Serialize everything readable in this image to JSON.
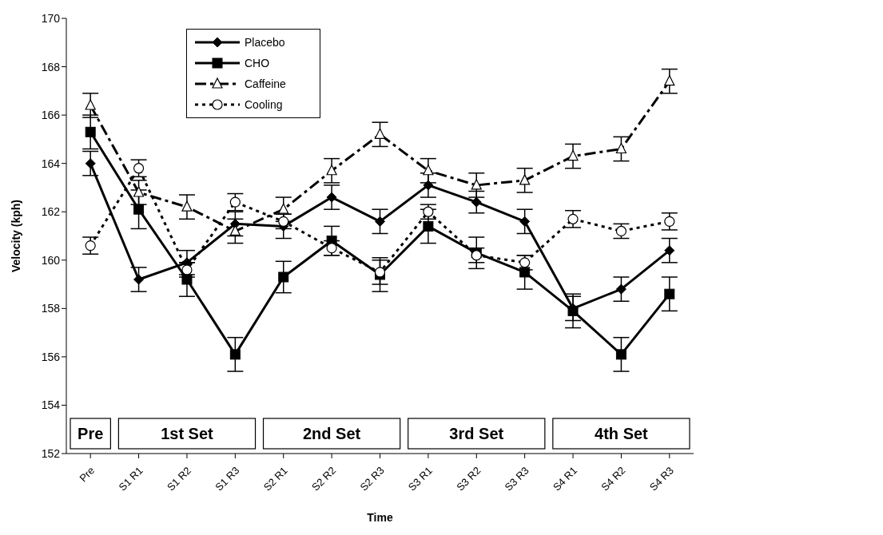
{
  "chart_data": {
    "type": "line",
    "xlabel": "Time",
    "ylabel": "Velocity (kph)",
    "categories": [
      "Pre",
      "S1 R1",
      "S1 R2",
      "S1 R3",
      "S2 R1",
      "S2 R2",
      "S2 R3",
      "S3 R1",
      "S3 R2",
      "S3 R3",
      "S4 R1",
      "S4 R2",
      "S4 R3"
    ],
    "series": [
      {
        "name": "Placebo",
        "color": "#000000",
        "marker": "diamond",
        "line_style": "solid",
        "values": [
          164.0,
          159.2,
          159.9,
          161.5,
          161.4,
          162.6,
          161.6,
          163.1,
          162.4,
          161.6,
          158.0,
          158.8,
          160.4
        ],
        "errors": [
          0.5,
          0.5,
          0.5,
          0.5,
          0.5,
          0.5,
          0.5,
          0.5,
          0.45,
          0.5,
          0.5,
          0.5,
          0.5
        ]
      },
      {
        "name": "CHO",
        "color": "#000000",
        "marker": "square",
        "line_style": "solid",
        "values": [
          165.3,
          162.1,
          159.2,
          156.1,
          159.3,
          160.8,
          159.4,
          161.4,
          160.3,
          159.5,
          157.9,
          156.1,
          158.6
        ],
        "errors": [
          0.7,
          0.8,
          0.7,
          0.7,
          0.65,
          0.6,
          0.7,
          0.7,
          0.65,
          0.7,
          0.7,
          0.7,
          0.7
        ]
      },
      {
        "name": "Caffeine",
        "color": "#000000",
        "marker": "triangle",
        "line_style": "dashed",
        "values": [
          166.4,
          162.8,
          162.2,
          161.2,
          162.1,
          163.7,
          165.2,
          163.7,
          163.1,
          163.3,
          164.3,
          164.6,
          167.4
        ],
        "errors": [
          0.5,
          0.5,
          0.5,
          0.5,
          0.5,
          0.5,
          0.5,
          0.5,
          0.5,
          0.5,
          0.5,
          0.5,
          0.5
        ]
      },
      {
        "name": "Cooling",
        "color": "#000000",
        "marker": "circle",
        "line_style": "dotted",
        "values": [
          160.6,
          163.8,
          159.6,
          162.4,
          161.6,
          160.5,
          159.5,
          162.0,
          160.2,
          159.9,
          161.7,
          161.2,
          161.6
        ],
        "errors": [
          0.35,
          0.35,
          0.3,
          0.35,
          0.3,
          0.3,
          0.5,
          0.3,
          0.3,
          0.3,
          0.35,
          0.3,
          0.35
        ]
      }
    ],
    "bands": [
      {
        "axis": "x",
        "from": "Pre",
        "to": "Pre",
        "label": "Pre"
      },
      {
        "axis": "x",
        "from": "S1 R1",
        "to": "S1 R3",
        "label": "1st Set"
      },
      {
        "axis": "x",
        "from": "S2 R1",
        "to": "S2 R3",
        "label": "2nd Set"
      },
      {
        "axis": "x",
        "from": "S3 R1",
        "to": "S3 R3",
        "label": "3rd Set"
      },
      {
        "axis": "x",
        "from": "S4 R1",
        "to": "S4 R3",
        "label": "4th Set"
      }
    ],
    "ylim": [
      152,
      170
    ],
    "yticks": [
      152,
      154,
      156,
      158,
      160,
      162,
      164,
      166,
      168,
      170
    ],
    "grid": false,
    "legend": "top left"
  }
}
